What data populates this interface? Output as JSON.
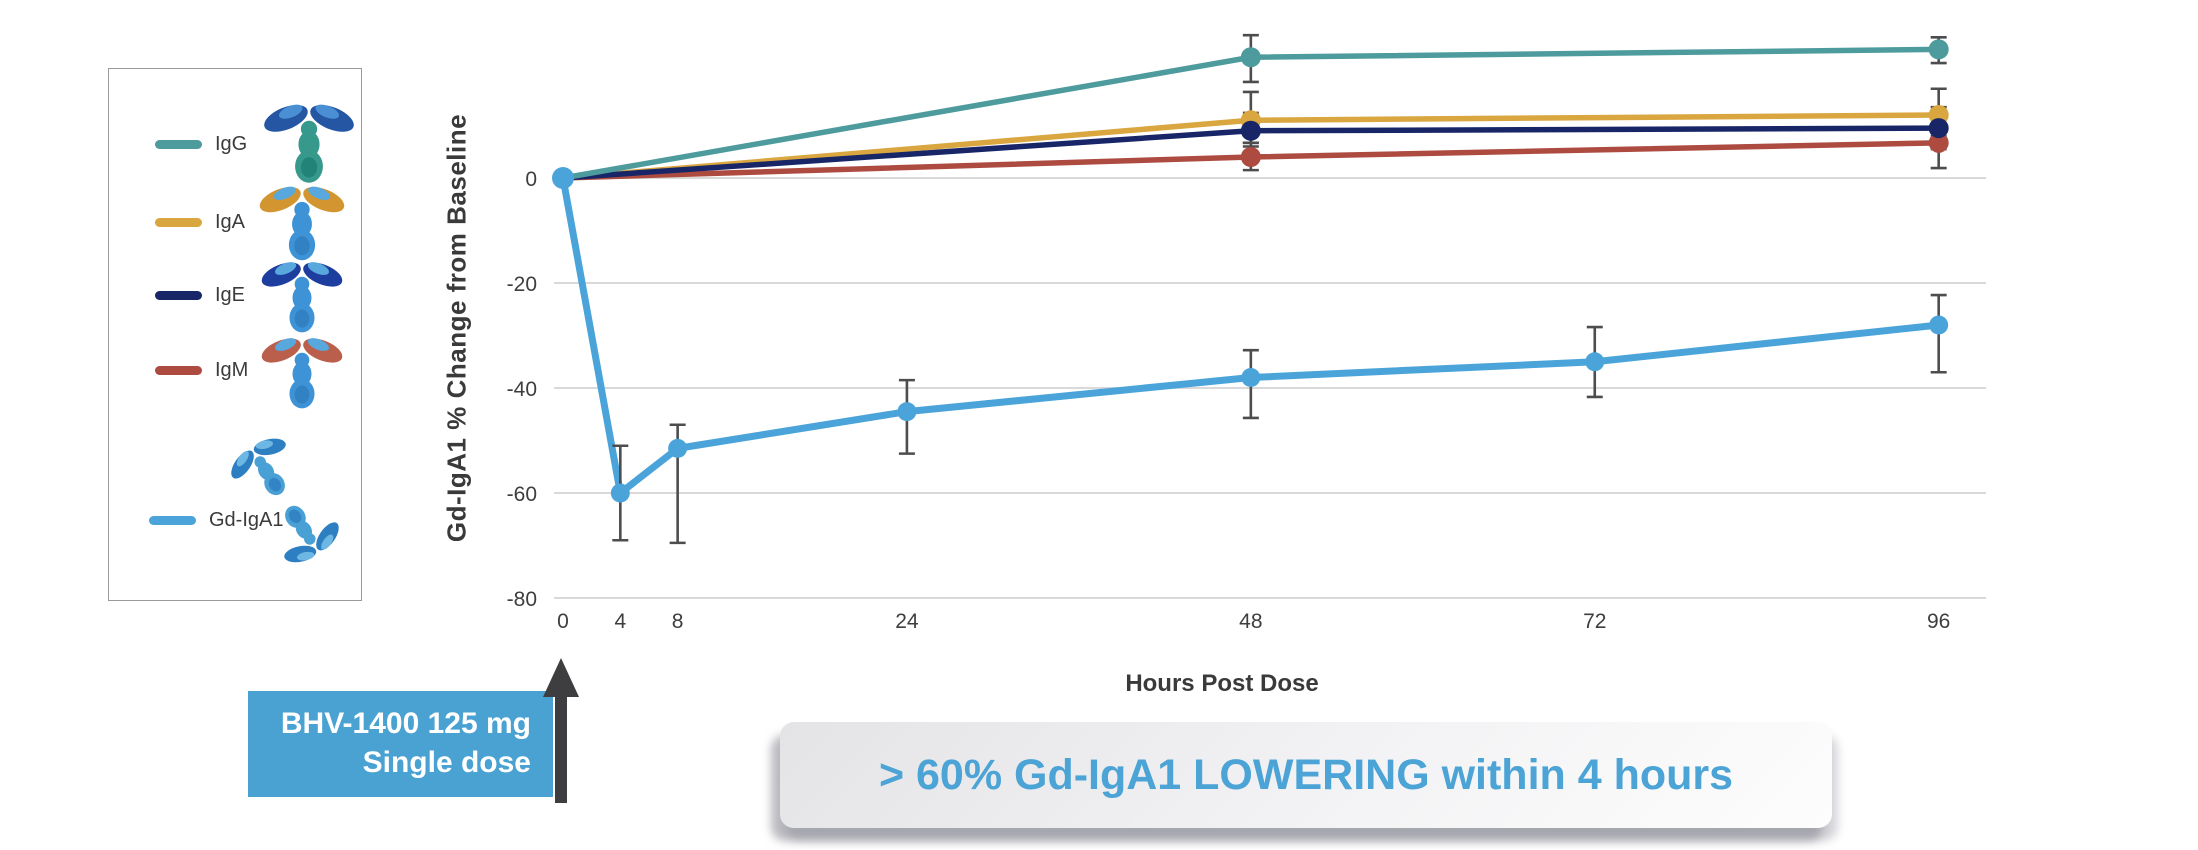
{
  "chart_data": {
    "type": "line",
    "xlabel": "Hours Post Dose",
    "ylabel": "Gd-IgA1 % Change from Baseline",
    "x_ticks": [
      0,
      4,
      8,
      24,
      48,
      72,
      96
    ],
    "y_ticks": [
      0,
      -20,
      -40,
      -60,
      -80
    ],
    "xlim": [
      0,
      99
    ],
    "ylim": [
      -80,
      29
    ],
    "grid": true,
    "gridline_color": "#d9d9da",
    "error_bar_color": "#4d4d4f",
    "series": [
      {
        "name": "IgM",
        "color": "#ad4b41",
        "line_width": 5.5,
        "marker_r": 10,
        "points": [
          {
            "x": 0,
            "y": 0
          },
          {
            "x": 48,
            "y": 4,
            "err_up": 2.7,
            "err_down": 2.5
          },
          {
            "x": 96,
            "y": 6.7,
            "err_up": 3,
            "err_down": 4.8
          }
        ]
      },
      {
        "name": "IgA",
        "color": "#d9a63f",
        "line_width": 5.5,
        "marker_r": 10,
        "points": [
          {
            "x": 0,
            "y": 0
          },
          {
            "x": 48,
            "y": 11,
            "err_up": 5.4,
            "err_down": 4.3
          },
          {
            "x": 96,
            "y": 12,
            "err_up": 5,
            "err_down": 4
          }
        ]
      },
      {
        "name": "IgE",
        "color": "#182668",
        "line_width": 5.5,
        "marker_r": 10,
        "points": [
          {
            "x": 0,
            "y": 0
          },
          {
            "x": 48,
            "y": 9,
            "err_up": 3.4,
            "err_down": 3
          },
          {
            "x": 96,
            "y": 9.5,
            "err_up": 4,
            "err_down": 4
          }
        ]
      },
      {
        "name": "IgG",
        "color": "#4d9b9c",
        "line_width": 5.5,
        "marker_r": 10,
        "points": [
          {
            "x": 0,
            "y": 0
          },
          {
            "x": 48,
            "y": 23,
            "err_up": 4.2,
            "err_down": 4.7
          },
          {
            "x": 96,
            "y": 24.5,
            "err_up": 2.3,
            "err_down": 2.6
          }
        ]
      },
      {
        "name": "Gd-IgA1",
        "color": "#4ba4d9",
        "line_width": 7,
        "marker_r": 9.5,
        "points": [
          {
            "x": 0,
            "y": 0,
            "r": 11
          },
          {
            "x": 4,
            "y": -60,
            "err_up": 9,
            "err_down": 9
          },
          {
            "x": 8,
            "y": -51.5,
            "err_up": 4.5,
            "err_down": 18
          },
          {
            "x": 24,
            "y": -44.5,
            "err_up": 6,
            "err_down": 8
          },
          {
            "x": 48,
            "y": -38,
            "err_up": 5.2,
            "err_down": 7.7
          },
          {
            "x": 72,
            "y": -35,
            "err_up": 6.6,
            "err_down": 6.7
          },
          {
            "x": 96,
            "y": -28,
            "err_up": 5.7,
            "err_down": 9
          }
        ]
      }
    ]
  },
  "legend": {
    "items": [
      {
        "label": "IgG",
        "color": "#4d9b9c",
        "icon": "igg-antibody-icon",
        "icon_colors": {
          "arms": "#2456a4",
          "arm_hi": "#4a8fd4",
          "body": "#36998c",
          "body_dark": "#1f7f75"
        }
      },
      {
        "label": "IgA",
        "color": "#d9a63f",
        "icon": "iga-antibody-icon",
        "icon_colors": {
          "arms": "#d2952f",
          "arm_hi": "#58a8dd",
          "body": "#3e93d6",
          "body_dark": "#2f7ec0"
        }
      },
      {
        "label": "IgE",
        "color": "#182668",
        "icon": "ige-antibody-icon",
        "icon_colors": {
          "arms": "#1d3e9e",
          "arm_hi": "#58a8dd",
          "body": "#3e93d6",
          "body_dark": "#2f7ec0"
        }
      },
      {
        "label": "IgM",
        "color": "#ad4b41",
        "icon": "igm-antibody-icon",
        "icon_colors": {
          "arms": "#bb5f4d",
          "arm_hi": "#58a8dd",
          "body": "#3e93d6",
          "body_dark": "#2f7ec0"
        }
      },
      {
        "label": "Gd-IgA1",
        "color": "#4ba4d9",
        "icon": "gd-iga1-antibody-dimer-icon",
        "icon_colors": {
          "arms": "#2e7fc2",
          "arm_hi": "#6db7e4",
          "body": "#49a0d4",
          "body_dark": "#2e7fc2"
        }
      }
    ]
  },
  "dose_callout": {
    "line1": "BHV-1400 125 mg",
    "line2": "Single dose",
    "bg_color": "#4aa2d2",
    "text_color": "#ffffff",
    "arrow_color": "#3e3e40"
  },
  "banner": {
    "text": "> 60% Gd-IgA1 LOWERING within 4 hours",
    "text_color": "#4ba3d6"
  }
}
